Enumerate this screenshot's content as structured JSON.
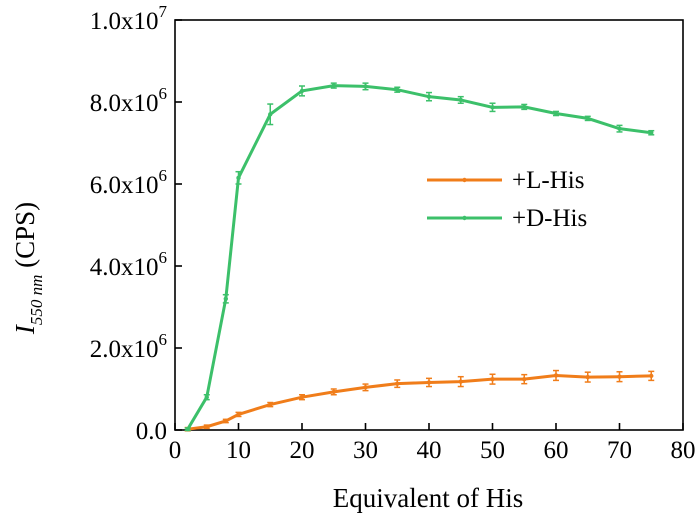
{
  "chart_data": {
    "type": "line",
    "xlabel": "Equivalent of His",
    "ylabel": "I550 nm (CPS)",
    "ylabel_main": "I",
    "ylabel_sub": "550 nm",
    "ylabel_rest": " (CPS)",
    "xlim": [
      0,
      80
    ],
    "ylim": [
      0,
      10000000
    ],
    "x_ticks": [
      0,
      10,
      20,
      30,
      40,
      50,
      60,
      70,
      80
    ],
    "x_tick_labels": [
      "0",
      "10",
      "20",
      "30",
      "40",
      "50",
      "60",
      "70",
      "80"
    ],
    "y_ticks": [
      0,
      2000000,
      4000000,
      6000000,
      8000000,
      10000000
    ],
    "y_tick_labels": [
      {
        "base": "0.0",
        "exp": ""
      },
      {
        "base": "2.0x10",
        "exp": "6"
      },
      {
        "base": "4.0x10",
        "exp": "6"
      },
      {
        "base": "6.0x10",
        "exp": "6"
      },
      {
        "base": "8.0x10",
        "exp": "6"
      },
      {
        "base": "1.0x10",
        "exp": "7"
      }
    ],
    "grid": false,
    "legend_position": "right-middle",
    "x": [
      2,
      5,
      8,
      10,
      15,
      20,
      25,
      30,
      35,
      40,
      45,
      50,
      55,
      60,
      65,
      70,
      75
    ],
    "series": [
      {
        "name": "+L-His",
        "color": "#F07D1A",
        "values": [
          20000,
          80000,
          220000,
          380000,
          620000,
          800000,
          930000,
          1040000,
          1130000,
          1160000,
          1180000,
          1240000,
          1240000,
          1330000,
          1290000,
          1300000,
          1320000
        ],
        "errors": [
          40000,
          40000,
          40000,
          50000,
          50000,
          60000,
          70000,
          80000,
          90000,
          100000,
          120000,
          120000,
          110000,
          120000,
          120000,
          120000,
          110000
        ]
      },
      {
        "name": "+D-His",
        "color": "#3CC06A",
        "values": [
          20000,
          800000,
          3200000,
          6150000,
          7700000,
          8270000,
          8400000,
          8380000,
          8300000,
          8130000,
          8050000,
          7870000,
          7880000,
          7720000,
          7600000,
          7350000,
          7250000
        ],
        "errors": [
          30000,
          60000,
          100000,
          150000,
          250000,
          120000,
          60000,
          80000,
          60000,
          100000,
          80000,
          100000,
          60000,
          50000,
          50000,
          80000,
          50000
        ]
      }
    ]
  }
}
